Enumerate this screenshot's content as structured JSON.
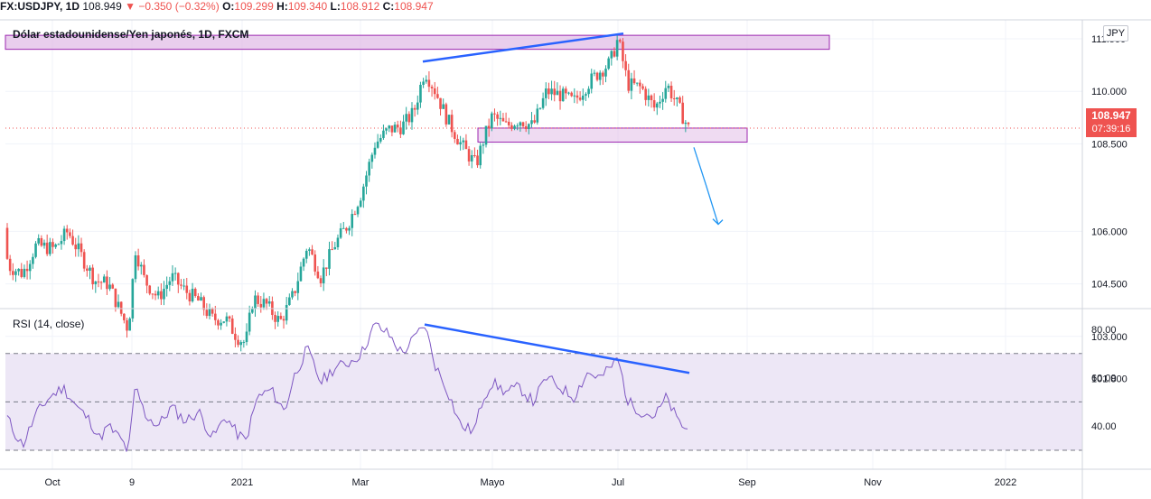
{
  "symbol_bar": {
    "symbol": "FX:USDJPY, 1D",
    "last": "108.949",
    "change": "▼ −0.350 (−0.32%)",
    "o_label": "O:",
    "o_value": "109.299",
    "h_label": "H:",
    "h_value": "109.340",
    "l_label": "L:",
    "l_value": "108.912",
    "c_label": "C:",
    "c_value": "108.947"
  },
  "main_title": "Dólar estadounidense/Yen japonés, 1D, FXCM",
  "rsi_title": "RSI (14, close)",
  "currency": "JPY",
  "price_tag": {
    "price": "108.947",
    "countdown": "07:39:16"
  },
  "colors": {
    "up": "#26a69a",
    "down": "#ef5350",
    "trend": "#2962ff",
    "zone_fill": "#e1bee7",
    "zone_border": "#9c27b0",
    "rsi_line": "#7e57c2",
    "rsi_band": "#ede7f6",
    "arrow": "#2196f3"
  },
  "chart_data": [
    {
      "type": "candlestick",
      "title": "Dólar estadounidense/Yen japonés, 1D, FXCM",
      "x_tick_labels": [
        "Oct",
        "9",
        "2021",
        "Mar",
        "Mayo",
        "Jul",
        "Sep",
        "Nov",
        "2022"
      ],
      "y_tick_labels": [
        "111.500",
        "110.000",
        "108.500",
        "106.000",
        "104.500",
        "103.000",
        "101.800"
      ],
      "ylim": [
        101.8,
        111.6
      ],
      "last_price": 108.947,
      "path": [
        [
          0,
          106.1
        ],
        [
          10,
          105.0
        ],
        [
          25,
          104.8
        ],
        [
          40,
          105.6
        ],
        [
          60,
          105.5
        ],
        [
          75,
          106.0
        ],
        [
          90,
          105.3
        ],
        [
          105,
          104.6
        ],
        [
          120,
          104.5
        ],
        [
          135,
          103.6
        ],
        [
          142,
          103.2
        ],
        [
          150,
          105.5
        ],
        [
          160,
          104.6
        ],
        [
          175,
          104.1
        ],
        [
          190,
          104.7
        ],
        [
          205,
          104.3
        ],
        [
          220,
          104.0
        ],
        [
          235,
          103.5
        ],
        [
          250,
          103.5
        ],
        [
          262,
          103.0
        ],
        [
          272,
          102.8
        ],
        [
          280,
          104.1
        ],
        [
          295,
          103.9
        ],
        [
          310,
          103.4
        ],
        [
          325,
          104.2
        ],
        [
          340,
          105.6
        ],
        [
          355,
          104.7
        ],
        [
          370,
          105.6
        ],
        [
          385,
          106.2
        ],
        [
          400,
          107.1
        ],
        [
          415,
          108.5
        ],
        [
          430,
          108.9
        ],
        [
          445,
          109.0
        ],
        [
          458,
          109.4
        ],
        [
          470,
          110.6
        ],
        [
          482,
          110.0
        ],
        [
          495,
          109.2
        ],
        [
          510,
          108.5
        ],
        [
          518,
          108.2
        ],
        [
          527,
          107.9
        ],
        [
          535,
          108.6
        ],
        [
          545,
          109.3
        ],
        [
          560,
          109.0
        ],
        [
          575,
          109.2
        ],
        [
          590,
          109.0
        ],
        [
          605,
          110.0
        ],
        [
          620,
          109.9
        ],
        [
          635,
          109.7
        ],
        [
          650,
          110.2
        ],
        [
          665,
          110.6
        ],
        [
          675,
          110.8
        ],
        [
          684,
          111.5
        ],
        [
          695,
          110.2
        ],
        [
          710,
          110.1
        ],
        [
          725,
          109.5
        ],
        [
          738,
          110.2
        ],
        [
          750,
          109.6
        ],
        [
          762,
          108.947
        ]
      ],
      "candle_count": 240
    },
    {
      "type": "line",
      "title": "RSI (14, close)",
      "y_tick_labels": [
        "80.00",
        "60.00",
        "40.00"
      ],
      "ylim": [
        24,
        86
      ],
      "levels": [
        70,
        50,
        30
      ],
      "path": [
        [
          0,
          50
        ],
        [
          15,
          38
        ],
        [
          25,
          32
        ],
        [
          40,
          45
        ],
        [
          55,
          52
        ],
        [
          70,
          56
        ],
        [
          85,
          48
        ],
        [
          100,
          42
        ],
        [
          110,
          35
        ],
        [
          120,
          40
        ],
        [
          135,
          34
        ],
        [
          142,
          29
        ],
        [
          150,
          57
        ],
        [
          160,
          45
        ],
        [
          175,
          40
        ],
        [
          190,
          48
        ],
        [
          205,
          42
        ],
        [
          220,
          46
        ],
        [
          235,
          35
        ],
        [
          250,
          44
        ],
        [
          262,
          37
        ],
        [
          272,
          34
        ],
        [
          285,
          52
        ],
        [
          300,
          55
        ],
        [
          315,
          46
        ],
        [
          325,
          60
        ],
        [
          340,
          72
        ],
        [
          355,
          58
        ],
        [
          370,
          64
        ],
        [
          385,
          66
        ],
        [
          400,
          70
        ],
        [
          415,
          82
        ],
        [
          430,
          78
        ],
        [
          445,
          70
        ],
        [
          458,
          76
        ],
        [
          470,
          82
        ],
        [
          482,
          65
        ],
        [
          495,
          55
        ],
        [
          510,
          40
        ],
        [
          525,
          38
        ],
        [
          535,
          52
        ],
        [
          545,
          58
        ],
        [
          560,
          54
        ],
        [
          575,
          56
        ],
        [
          590,
          50
        ],
        [
          605,
          60
        ],
        [
          620,
          56
        ],
        [
          635,
          52
        ],
        [
          650,
          62
        ],
        [
          665,
          60
        ],
        [
          675,
          64
        ],
        [
          684,
          68
        ],
        [
          695,
          50
        ],
        [
          710,
          46
        ],
        [
          725,
          44
        ],
        [
          738,
          52
        ],
        [
          750,
          42
        ],
        [
          762,
          38
        ]
      ]
    }
  ],
  "annotations": {
    "zone_top": {
      "price_from": 111.2,
      "price_to": 111.6
    },
    "zone_mid": {
      "price_from": 108.55,
      "price_to": 108.95
    },
    "trend_price": [
      [
        468,
        110.85
      ],
      [
        690,
        111.65
      ]
    ],
    "trend_rsi": [
      [
        470,
        82
      ],
      [
        763,
        62
      ]
    ],
    "arrow": [
      [
        768,
        108.4
      ],
      [
        795,
        106.2
      ]
    ]
  }
}
